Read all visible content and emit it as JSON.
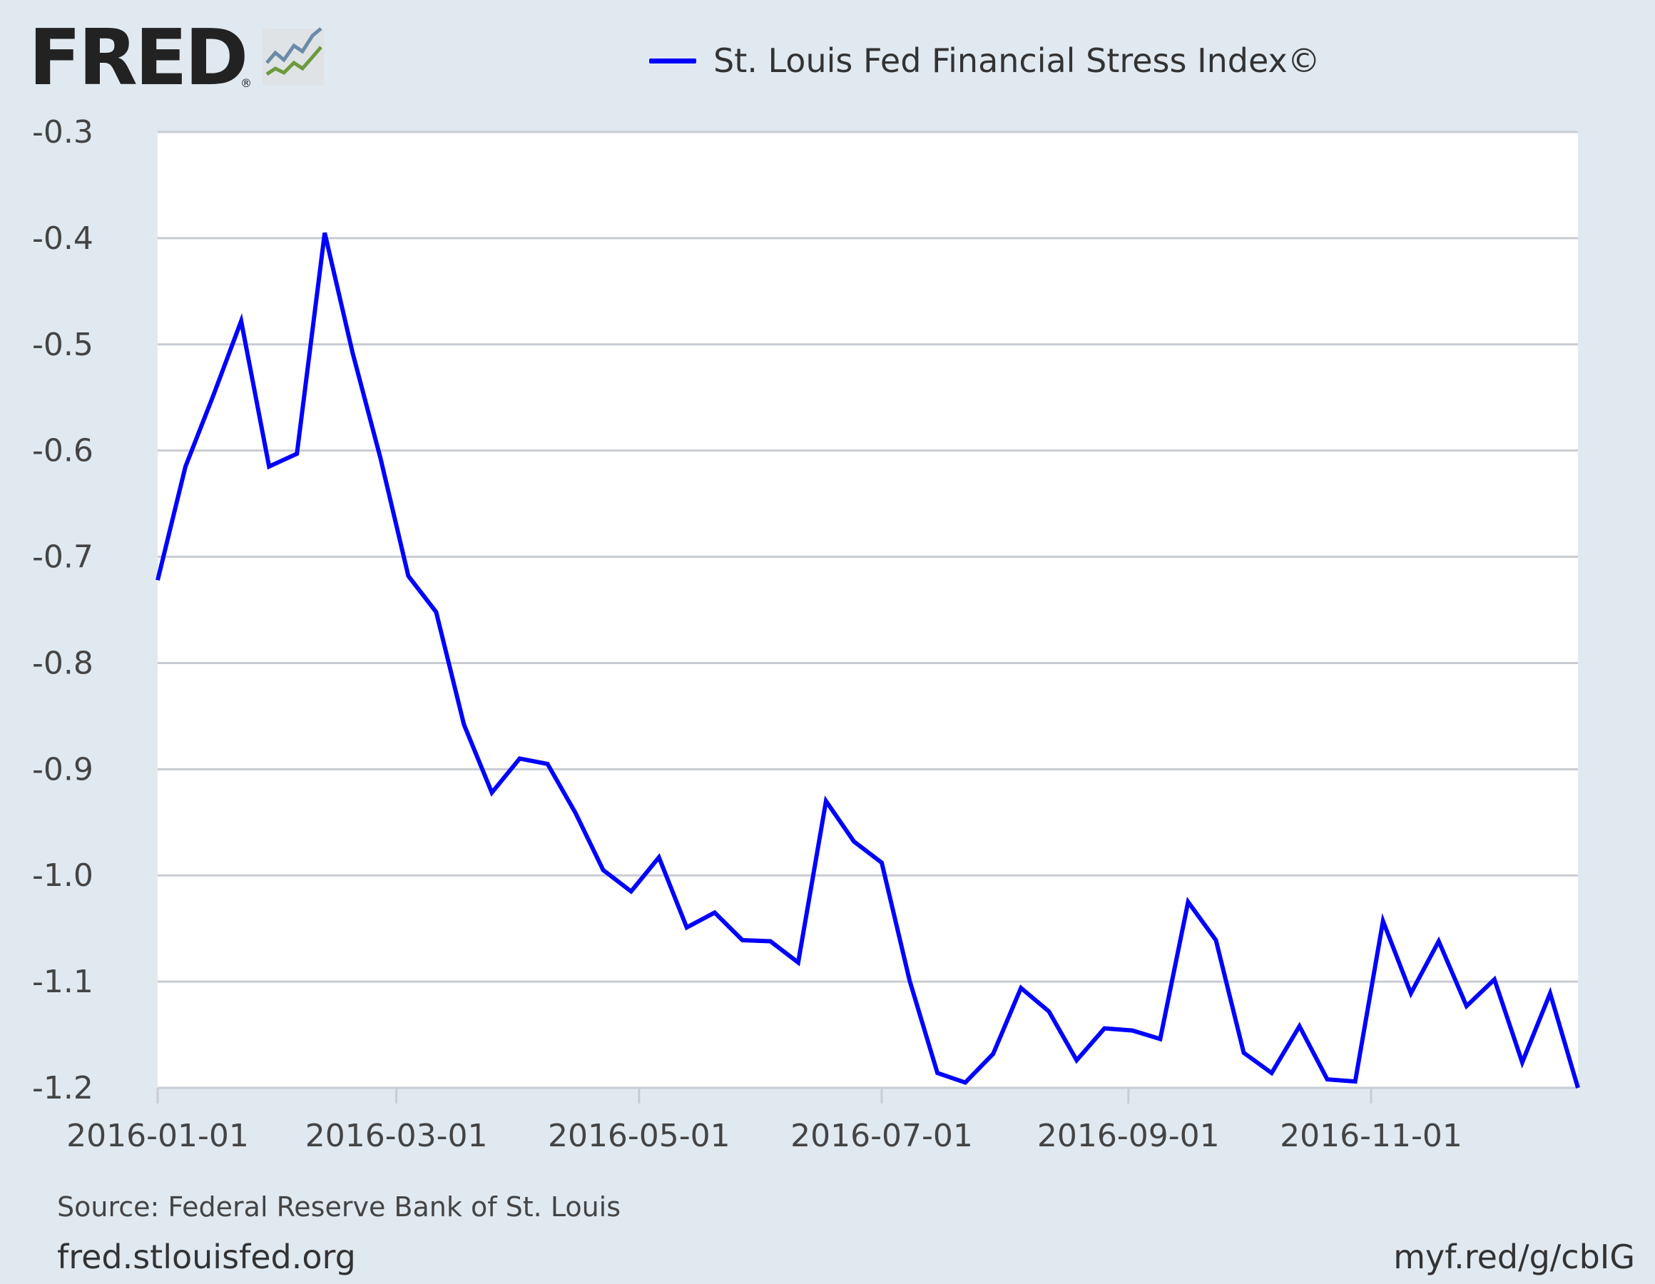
{
  "brand": {
    "name": "FRED",
    "registered": "®",
    "icon": "chart-trend-icon"
  },
  "legend": {
    "label": "St. Louis Fed Financial Stress Index©",
    "color": "#0000ff"
  },
  "footer": {
    "source": "Source: Federal Reserve Bank of St. Louis",
    "site": "fred.stlouisfed.org",
    "short_link": "myf.red/g/cbIG"
  },
  "colors": {
    "background": "#e1e9f0",
    "plot": "#ffffff",
    "grid": "#c8ccd2",
    "series": "#0000ff"
  },
  "chart_data": {
    "type": "line",
    "title": "",
    "xlabel": "",
    "ylabel": "",
    "x_type": "date",
    "xlim": [
      "2016-01-01",
      "2016-12-23"
    ],
    "ylim": [
      -1.2,
      -0.3
    ],
    "yticks": [
      -0.3,
      -0.4,
      -0.5,
      -0.6,
      -0.7,
      -0.8,
      -0.9,
      -1.0,
      -1.1,
      -1.2
    ],
    "ytick_labels": [
      "-0.3",
      "-0.4",
      "-0.5",
      "-0.6",
      "-0.7",
      "-0.8",
      "-0.9",
      "-1.0",
      "-1.1",
      "-1.2"
    ],
    "xticks": [
      "2016-01-01",
      "2016-03-01",
      "2016-05-01",
      "2016-07-01",
      "2016-09-01",
      "2016-11-01"
    ],
    "xtick_labels": [
      "2016-01-01",
      "2016-03-01",
      "2016-05-01",
      "2016-07-01",
      "2016-09-01",
      "2016-11-01"
    ],
    "grid": true,
    "legend_position": "top",
    "series": [
      {
        "name": "St. Louis Fed Financial Stress Index©",
        "color": "#0000ff",
        "x": [
          "2016-01-01",
          "2016-01-08",
          "2016-01-15",
          "2016-01-22",
          "2016-01-29",
          "2016-02-05",
          "2016-02-12",
          "2016-02-19",
          "2016-02-26",
          "2016-03-04",
          "2016-03-11",
          "2016-03-18",
          "2016-03-25",
          "2016-04-01",
          "2016-04-08",
          "2016-04-15",
          "2016-04-22",
          "2016-04-29",
          "2016-05-06",
          "2016-05-13",
          "2016-05-20",
          "2016-05-27",
          "2016-06-03",
          "2016-06-10",
          "2016-06-17",
          "2016-06-24",
          "2016-07-01",
          "2016-07-08",
          "2016-07-15",
          "2016-07-22",
          "2016-07-29",
          "2016-08-05",
          "2016-08-12",
          "2016-08-19",
          "2016-08-26",
          "2016-09-02",
          "2016-09-09",
          "2016-09-16",
          "2016-09-23",
          "2016-09-30",
          "2016-10-07",
          "2016-10-14",
          "2016-10-21",
          "2016-10-28",
          "2016-11-04",
          "2016-11-11",
          "2016-11-18",
          "2016-11-25",
          "2016-12-02",
          "2016-12-09",
          "2016-12-16",
          "2016-12-23"
        ],
        "values": [
          -0.722,
          -0.615,
          -0.548,
          -0.478,
          -0.615,
          -0.603,
          -0.395,
          -0.508,
          -0.607,
          -0.718,
          -0.752,
          -0.858,
          -0.922,
          -0.89,
          -0.895,
          -0.941,
          -0.995,
          -1.015,
          -0.983,
          -1.049,
          -1.035,
          -1.061,
          -1.062,
          -1.082,
          -0.93,
          -0.968,
          -0.988,
          -1.099,
          -1.186,
          -1.195,
          -1.168,
          -1.106,
          -1.128,
          -1.174,
          -1.144,
          -1.146,
          -1.154,
          -1.025,
          -1.061,
          -1.167,
          -1.186,
          -1.142,
          -1.192,
          -1.194,
          -1.043,
          -1.111,
          -1.062,
          -1.123,
          -1.098,
          -1.176,
          -1.111,
          -1.2
        ]
      }
    ]
  }
}
